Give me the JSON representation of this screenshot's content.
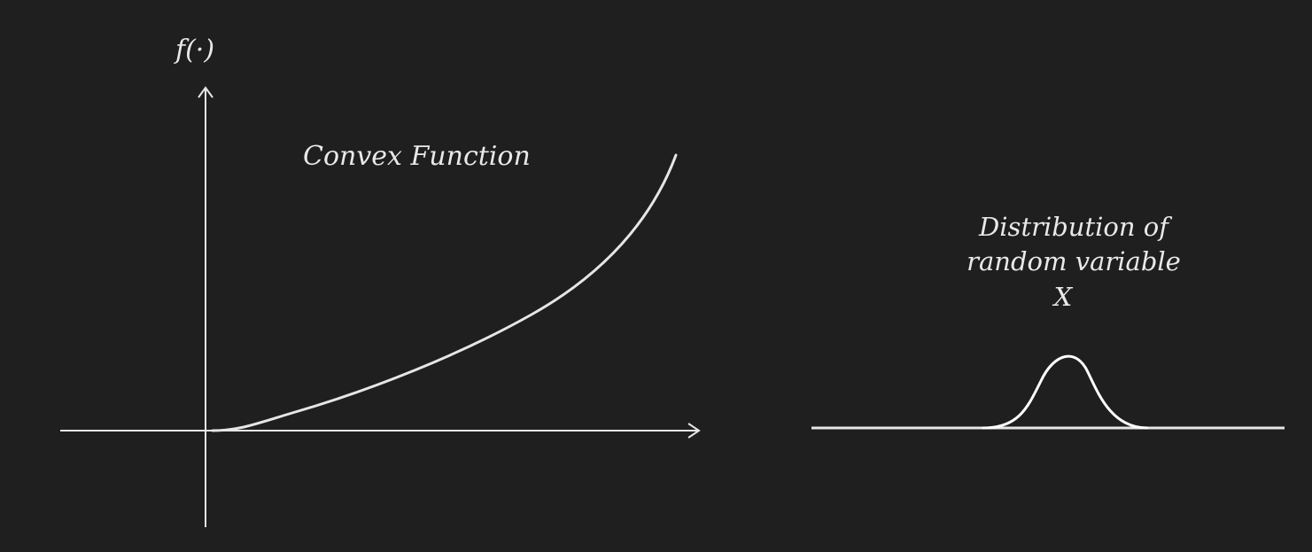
{
  "left_panel": {
    "y_axis_label": "f(·)",
    "curve_label": "Convex Function"
  },
  "right_panel": {
    "distribution_label": {
      "line1": "Distribution of",
      "line2": "random variable",
      "line3": "X"
    }
  },
  "colors": {
    "background": "#1f1f1f",
    "line": "#e6e6e6"
  }
}
